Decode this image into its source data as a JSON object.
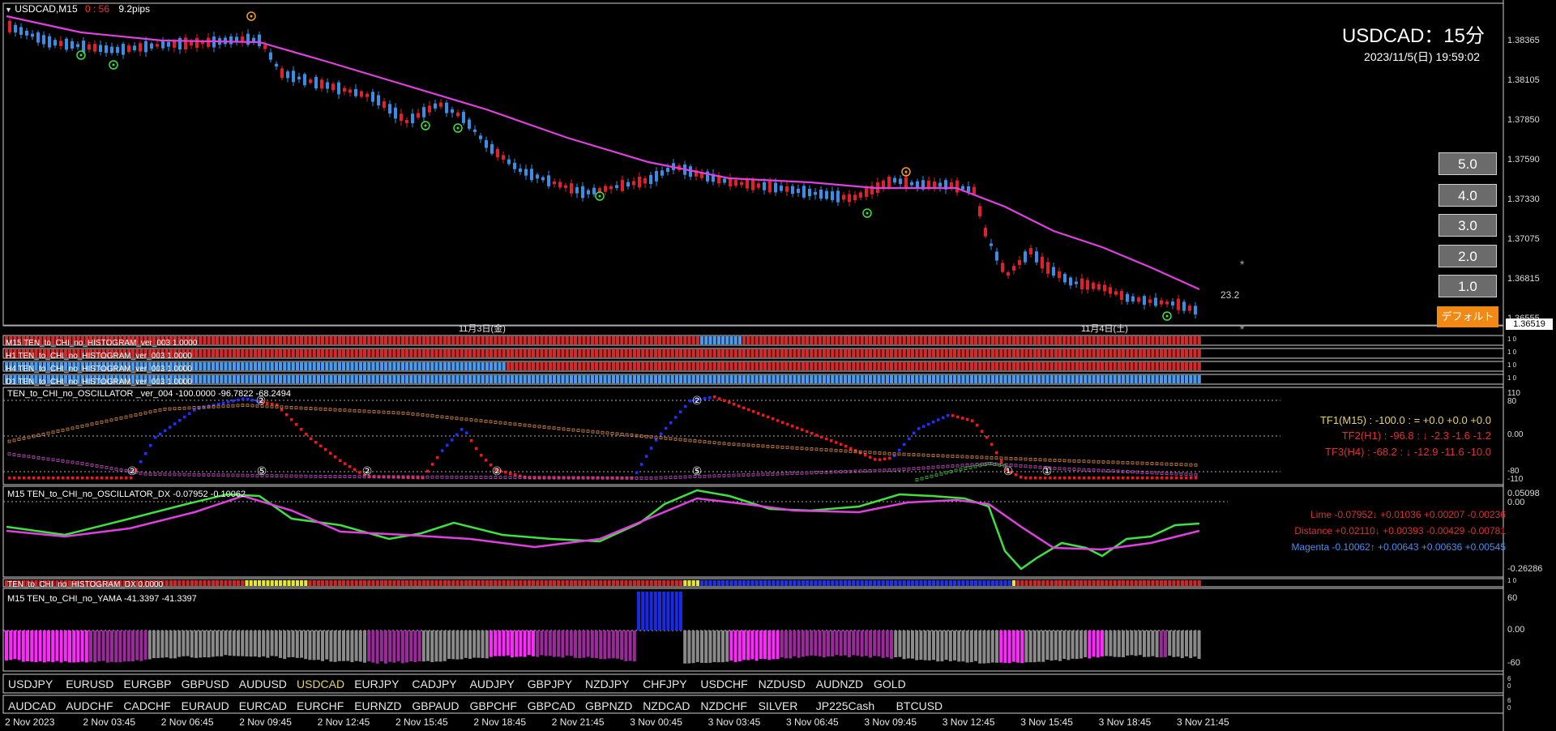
{
  "header": {
    "symbol_tf": "USDCAD,M15",
    "countdown": "0 : 56",
    "spread": "9.2pips",
    "big_title": "USDCAD：15分",
    "datetime": "2023/11/5(日) 19:59:02"
  },
  "price_axis": {
    "labels": [
      "1.38365",
      "1.38105",
      "1.37850",
      "1.37590",
      "1.37330",
      "1.37075",
      "1.36815",
      "1.36555"
    ],
    "current_price": "1.36519"
  },
  "main_chart": {
    "date_markers": [
      "11月3日(金)",
      "11月4日(土)"
    ],
    "value_23": "23.2",
    "star": "*"
  },
  "level_buttons": [
    "5.0",
    "4.0",
    "3.0",
    "2.0",
    "1.0"
  ],
  "default_button": "デフォルト",
  "histogram_rows": [
    {
      "label": "M15 TEN_to_CHI_no_HISTOGRAM_ver_003 1.0000",
      "scale": "1 0"
    },
    {
      "label": "H1 TEN_to_CHI_no_HISTOGRAM_ver_003 1.0000",
      "scale": "1 0"
    },
    {
      "label": "H4 TEN_to_CHI_no_HISTOGRAM_ver_003 1.0000",
      "scale": "1 0"
    },
    {
      "label": "D1 TEN_to_CHI_no_HISTOGRAM_ver_003 1.0000",
      "scale": "1 0"
    }
  ],
  "oscillator": {
    "label": "TEN_to_CHI_no_OSCILLATOR _ver_004 -100.0000 -96.7822 -68.2494",
    "axis": [
      "110",
      "80",
      "0.00",
      "-80",
      "-110"
    ],
    "tf1": "TF1(M15) : -100.0 : = +0.0 +0.0 +0.0",
    "tf2": "TF2(H1) : -96.8 : ↓ -2.3 -1.6 -1.2",
    "tf3": "TF3(H4) : -68.2 : ↓ -12.9 -11.6 -10.0",
    "markers": [
      "②",
      "⑤",
      "②",
      "②",
      "⑤",
      "①",
      "①",
      "②"
    ]
  },
  "oscillator_dx": {
    "label": "M15 TEN_to_CHI_no_OSCILLATOR_DX -0.07952 -0.10062",
    "axis": [
      "0.05098",
      "0.00",
      "-0.26286"
    ],
    "lime": "Lime -0.07952↓ +0.01036 +0.00207 -0.00236",
    "distance": "Distance +0.02110↓ +0.00393 -0.00429 -0.00781",
    "magenta": "Magenta -0.10062↑ +0.00643 +0.00636 +0.00545"
  },
  "histogram_dx": {
    "label": "TEN_to_CHI_no_HISTOGRAM_DX 0.0000",
    "scale": "1 0"
  },
  "yama": {
    "label": "M15 TEN_to_CHI_no_YAMA -41.3397 -41.3397",
    "axis": [
      "60",
      "0.00",
      "-60"
    ]
  },
  "symbols_row1": [
    "USDJPY",
    "EURUSD",
    "EURGBP",
    "GBPUSD",
    "AUDUSD",
    "USDCAD",
    "EURJPY",
    "CADJPY",
    "AUDJPY",
    "GBPJPY",
    "NZDJPY",
    "CHFJPY",
    "USDCHF",
    "NZDUSD",
    "AUDNZD",
    "GOLD"
  ],
  "symbols_row2": [
    "AUDCAD",
    "AUDCHF",
    "CADCHF",
    "EURAUD",
    "EURCAD",
    "EURCHF",
    "EURNZD",
    "GBPAUD",
    "GBPCHF",
    "GBPCAD",
    "GBPNZD",
    "NZDCAD",
    "NZDCHF",
    "SILVER",
    "JP225Cash",
    "BTCUSD"
  ],
  "active_symbol": "USDCAD",
  "time_axis": [
    "2 Nov 2023",
    "2 Nov 03:45",
    "2 Nov 06:45",
    "2 Nov 09:45",
    "2 Nov 12:45",
    "2 Nov 15:45",
    "2 Nov 18:45",
    "2 Nov 21:45",
    "3 Nov 00:45",
    "3 Nov 03:45",
    "3 Nov 06:45",
    "3 Nov 09:45",
    "3 Nov 12:45",
    "3 Nov 15:45",
    "3 Nov 18:45",
    "3 Nov 21:45"
  ],
  "colors": {
    "bull": "#3a8ee6",
    "bear": "#e0202a",
    "ma": "#e040e0",
    "lime": "#40e040",
    "hist_red": "#d42a2a",
    "hist_blue": "#4a9af0",
    "yama_mag": "#ff28ff",
    "yama_pur": "#9a2a9a",
    "yama_gray": "#8a8a8a",
    "osc_blue": "#2233ee"
  }
}
